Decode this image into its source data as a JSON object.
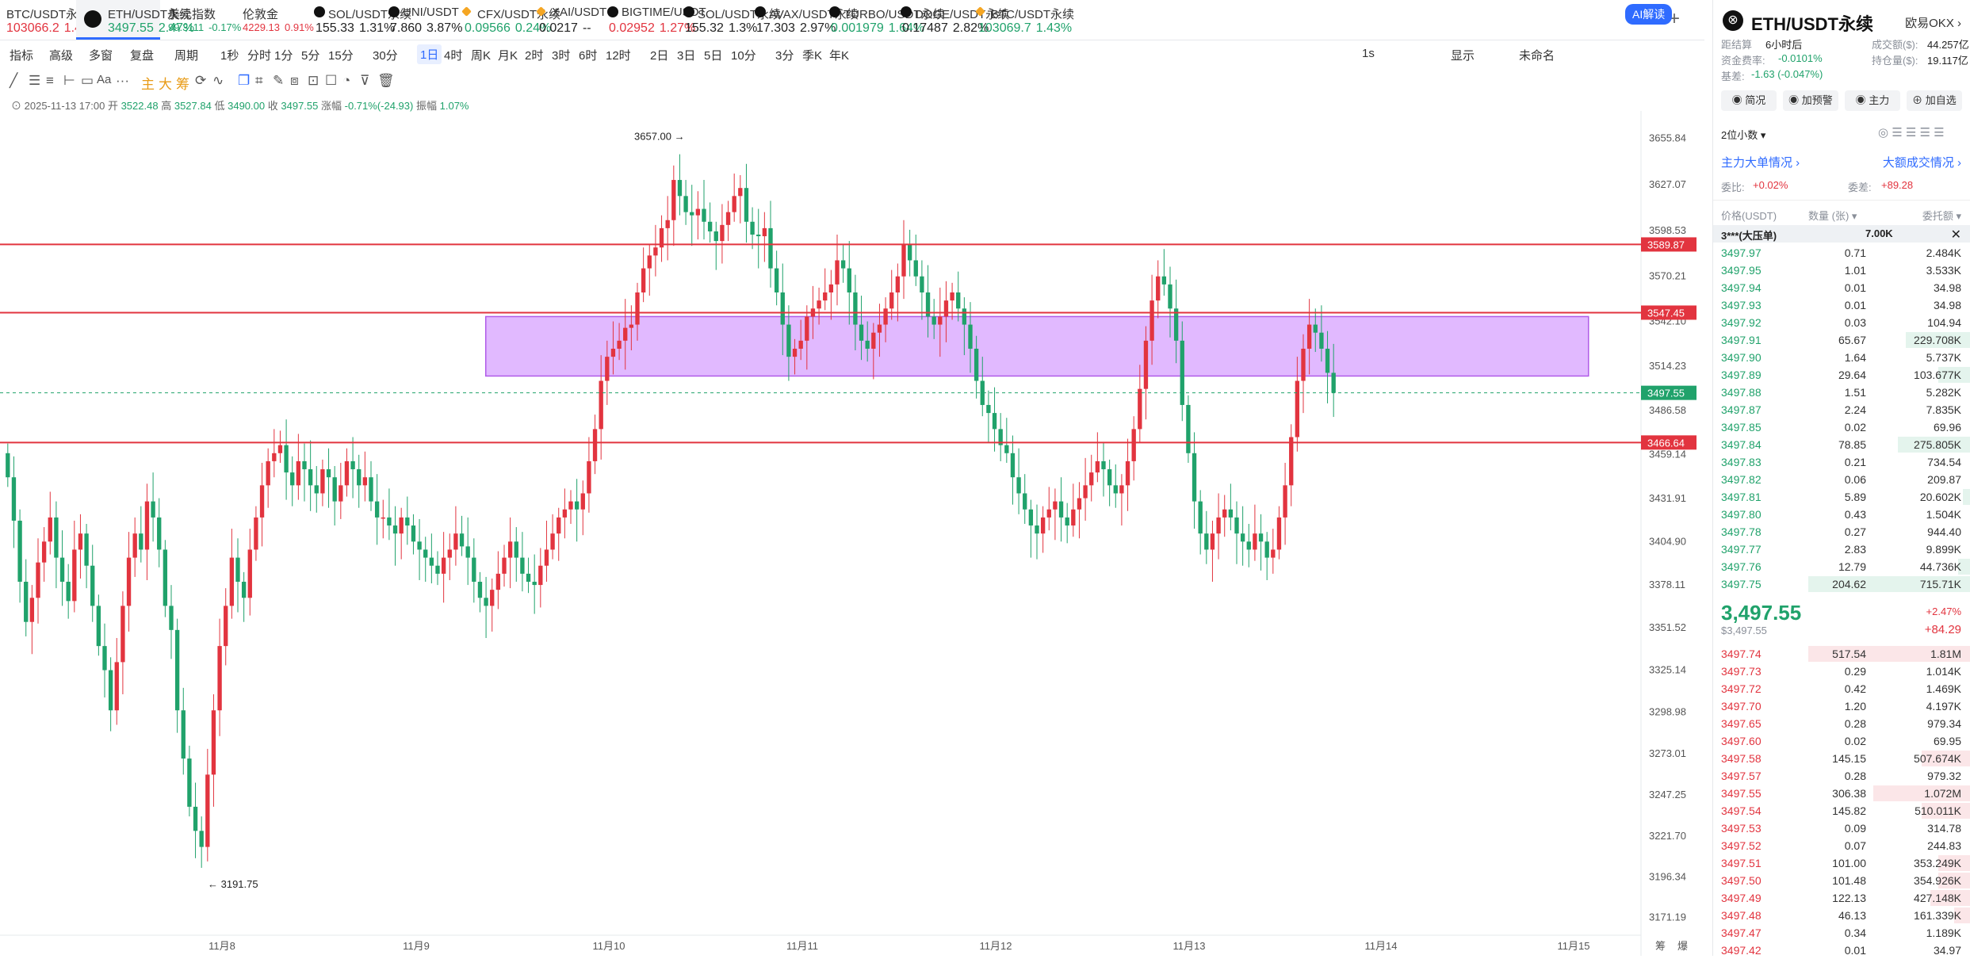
{
  "ticker_tabs": [
    {
      "name": "BTC/USDT永续",
      "price": "103066.2",
      "change": "1.44%",
      "dir": "up",
      "icon": "none"
    },
    {
      "name": "ETH/USDT永续",
      "price": "3497.55",
      "change": "2.47%",
      "dir": "down",
      "icon": "okx-icon",
      "active": true
    },
    {
      "name": "美元指数",
      "price": "99.3111",
      "change": "-0.17%",
      "dir": "down",
      "icon": "none"
    },
    {
      "name": "伦敦金",
      "price": "4229.13",
      "change": "0.91%",
      "dir": "up",
      "icon": "none"
    },
    {
      "name": "SOL/USDT永续",
      "price": "155.33",
      "change": "1.31%",
      "dir": "neutral",
      "icon": "okx-icon"
    },
    {
      "name": "UNI/USDT",
      "price": "7.860",
      "change": "3.87%",
      "dir": "neutral",
      "icon": "okx-icon"
    },
    {
      "name": "CFX/USDT永续",
      "price": "0.09566",
      "change": "0.24%",
      "dir": "down",
      "icon": "binance-icon"
    },
    {
      "name": "XAI/USDT",
      "price": "0.0217",
      "change": "--",
      "dir": "neutral",
      "icon": "binance-icon"
    },
    {
      "name": "BIGTIME/USDT",
      "price": "0.02952",
      "change": "1.27%",
      "dir": "up",
      "icon": "okx-icon"
    },
    {
      "name": "SOL/USDT永续",
      "price": "155.32",
      "change": "1.3%",
      "dir": "neutral",
      "icon": "okx-icon"
    },
    {
      "name": "AVAX/USDT永续",
      "price": "17.303",
      "change": "2.97%",
      "dir": "neutral",
      "icon": "okx-icon"
    },
    {
      "name": "TURBO/USDT永续",
      "price": "0.001979",
      "change": "1.64%",
      "dir": "down",
      "icon": "okx-icon"
    },
    {
      "name": "DOGE/USDT永续",
      "price": "0.17487",
      "change": "2.82%",
      "dir": "neutral",
      "icon": "okx-icon"
    },
    {
      "name": "BTC/USDT永续",
      "price": "103069.7",
      "change": "1.43%",
      "dir": "down",
      "icon": "binance-icon"
    }
  ],
  "toolbar": {
    "items": [
      "指标",
      "高级",
      "多窗",
      "复盘",
      "周期",
      "1秒",
      "分时",
      "1分",
      "5分",
      "15分",
      "30分",
      "1日",
      "4时",
      "周K",
      "月K",
      "2时",
      "3时",
      "6时",
      "12时",
      "2日",
      "3日",
      "5日",
      "10分",
      "3分",
      "季K",
      "年K"
    ],
    "selected": "1日",
    "right_items": [
      "1s",
      "显示",
      "未命名"
    ],
    "ai_label": "AI解读"
  },
  "draw_tools": {
    "labels": [
      "Aa",
      "主",
      "大",
      "筹"
    ]
  },
  "ohlc": {
    "date": "2025-11-13 17:00",
    "open_label": "开",
    "open": "3522.48",
    "high_label": "高",
    "high": "3527.84",
    "low_label": "低",
    "low": "3490.00",
    "close_label": "收",
    "close": "3497.55",
    "chg_label": "涨幅",
    "chg": "-0.71%(-24.93)",
    "amp_label": "振幅",
    "amp": "1.07%"
  },
  "chart_data": {
    "type": "candlestick",
    "x_labels": [
      "11月8",
      "11月9",
      "11月10",
      "11月11",
      "11月12",
      "11月13",
      "11月14",
      "11月15"
    ],
    "y_ticks": [
      3655.84,
      3627.07,
      3598.53,
      3570.21,
      3542.1,
      3514.23,
      3486.58,
      3459.14,
      3431.91,
      3404.9,
      3378.11,
      3351.52,
      3325.14,
      3298.98,
      3273.01,
      3247.25,
      3221.7,
      3196.34,
      3171.19
    ],
    "ylim": [
      3165,
      3668
    ],
    "h_lines": [
      {
        "label": "3589.87",
        "value": 3589.87,
        "color": "#e2343f"
      },
      {
        "label": "3547.45",
        "value": 3547.45,
        "color": "#e2343f"
      },
      {
        "label": "3466.64",
        "value": 3466.64,
        "color": "#e2343f"
      }
    ],
    "current_price": {
      "label": "3497.55",
      "value": 3497.55,
      "color": "#20a26b"
    },
    "zone": {
      "top": 3545,
      "bottom": 3508,
      "x_start": 0.296,
      "x_end": 0.968,
      "color": "#d9a7ff"
    },
    "max_label": "3657.00",
    "max_value": 3657.0,
    "min_label": "3191.75",
    "min_value": 3191.75,
    "corner_labels": [
      "筹",
      "爆"
    ],
    "close_series": [
      3445,
      3418,
      3380,
      3355,
      3370,
      3392,
      3405,
      3420,
      3395,
      3380,
      3368,
      3400,
      3410,
      3390,
      3365,
      3340,
      3325,
      3300,
      3330,
      3365,
      3395,
      3410,
      3400,
      3430,
      3420,
      3400,
      3365,
      3350,
      3300,
      3270,
      3240,
      3225,
      3215,
      3260,
      3300,
      3340,
      3365,
      3395,
      3380,
      3370,
      3400,
      3420,
      3440,
      3455,
      3460,
      3465,
      3448,
      3440,
      3455,
      3450,
      3440,
      3435,
      3450,
      3445,
      3430,
      3440,
      3455,
      3450,
      3440,
      3445,
      3430,
      3420,
      3420,
      3415,
      3410,
      3420,
      3415,
      3405,
      3400,
      3395,
      3390,
      3385,
      3395,
      3400,
      3410,
      3402,
      3395,
      3380,
      3370,
      3365,
      3375,
      3385,
      3395,
      3405,
      3395,
      3385,
      3380,
      3378,
      3390,
      3400,
      3410,
      3420,
      3425,
      3430,
      3425,
      3435,
      3455,
      3475,
      3505,
      3520,
      3525,
      3530,
      3538,
      3540,
      3560,
      3575,
      3583,
      3588,
      3600,
      3605,
      3630,
      3620,
      3610,
      3608,
      3612,
      3604,
      3598,
      3592,
      3602,
      3610,
      3620,
      3625,
      3604,
      3596,
      3595,
      3600,
      3575,
      3560,
      3540,
      3520,
      3525,
      3530,
      3545,
      3550,
      3555,
      3560,
      3565,
      3580,
      3575,
      3560,
      3540,
      3530,
      3525,
      3535,
      3540,
      3550,
      3560,
      3570,
      3590,
      3580,
      3570,
      3560,
      3545,
      3540,
      3545,
      3555,
      3560,
      3550,
      3540,
      3525,
      3505,
      3490,
      3485,
      3475,
      3465,
      3460,
      3445,
      3435,
      3425,
      3415,
      3410,
      3420,
      3425,
      3430,
      3420,
      3415,
      3425,
      3432,
      3440,
      3448,
      3455,
      3450,
      3440,
      3435,
      3440,
      3455,
      3475,
      3500,
      3530,
      3555,
      3570,
      3565,
      3550,
      3530,
      3490,
      3460,
      3430,
      3410,
      3400,
      3410,
      3420,
      3425,
      3420,
      3410,
      3405,
      3400,
      3410,
      3405,
      3395,
      3400,
      3420,
      3440,
      3470,
      3505,
      3525,
      3540,
      3535,
      3525,
      3510,
      3497.55
    ]
  },
  "panel": {
    "symbol": "ETH/USDT永续",
    "exchange": "欧易OKX",
    "funding_label": "距结算",
    "funding_val": "6小时后",
    "rate_label": "资金费率:",
    "rate_val": "-0.0101%",
    "basis_label": "基差:",
    "basis_val": "-1.63 (-0.047%)",
    "vol_label": "成交额($):",
    "vol_val": "44.257亿",
    "oi_label": "持仓量($):",
    "oi_val": "19.117亿",
    "buttons": [
      "简况",
      "加预警",
      "主力",
      "加自选"
    ],
    "decimals": "2位小数",
    "big_orders": "主力大单情况",
    "big_trades": "大额成交情况",
    "ratio_label": "委比:",
    "ratio_val": "+0.02%",
    "diff_label": "委差:",
    "diff_val": "+89.28",
    "col_price": "价格(USDT)",
    "col_qty": "数量 (张)",
    "col_total": "委托额",
    "wall_label": "3***(大压单)",
    "wall_val": "7.00K",
    "asks": [
      [
        "3497.97",
        "0.71",
        "2.484K",
        0
      ],
      [
        "3497.95",
        "1.01",
        "3.533K",
        0
      ],
      [
        "3497.94",
        "0.01",
        "34.98",
        0
      ],
      [
        "3497.93",
        "0.01",
        "34.98",
        0
      ],
      [
        "3497.92",
        "0.03",
        "104.94",
        0
      ],
      [
        "3497.91",
        "65.67",
        "229.708K",
        0.4
      ],
      [
        "3497.90",
        "1.64",
        "5.737K",
        0
      ],
      [
        "3497.89",
        "29.64",
        "103.677K",
        0.2
      ],
      [
        "3497.88",
        "1.51",
        "5.282K",
        0
      ],
      [
        "3497.87",
        "2.24",
        "7.835K",
        0
      ],
      [
        "3497.85",
        "0.02",
        "69.96",
        0
      ],
      [
        "3497.84",
        "78.85",
        "275.805K",
        0.45
      ],
      [
        "3497.83",
        "0.21",
        "734.54",
        0
      ],
      [
        "3497.82",
        "0.06",
        "209.87",
        0
      ],
      [
        "3497.81",
        "5.89",
        "20.602K",
        0.05
      ],
      [
        "3497.80",
        "0.43",
        "1.504K",
        0
      ],
      [
        "3497.78",
        "0.27",
        "944.40",
        0
      ],
      [
        "3497.77",
        "2.83",
        "9.899K",
        0
      ],
      [
        "3497.76",
        "12.79",
        "44.736K",
        0.08
      ],
      [
        "3497.75",
        "204.62",
        "715.71K",
        1.0
      ]
    ],
    "last_price": "3,497.55",
    "last_usd": "$3,497.55",
    "last_chg": "+2.47%",
    "last_diff": "+84.29",
    "bids": [
      [
        "3497.74",
        "517.54",
        "1.81M",
        1.0
      ],
      [
        "3497.73",
        "0.29",
        "1.014K",
        0
      ],
      [
        "3497.72",
        "0.42",
        "1.469K",
        0
      ],
      [
        "3497.70",
        "1.20",
        "4.197K",
        0
      ],
      [
        "3497.65",
        "0.28",
        "979.34",
        0
      ],
      [
        "3497.60",
        "0.02",
        "69.95",
        0
      ],
      [
        "3497.58",
        "145.15",
        "507.674K",
        0.3
      ],
      [
        "3497.57",
        "0.28",
        "979.32",
        0
      ],
      [
        "3497.55",
        "306.38",
        "1.072M",
        0.6
      ],
      [
        "3497.54",
        "145.82",
        "510.011K",
        0.3
      ],
      [
        "3497.53",
        "0.09",
        "314.78",
        0
      ],
      [
        "3497.52",
        "0.07",
        "244.83",
        0
      ],
      [
        "3497.51",
        "101.00",
        "353.249K",
        0.2
      ],
      [
        "3497.50",
        "101.48",
        "354.926K",
        0.2
      ],
      [
        "3497.49",
        "122.13",
        "427.148K",
        0.25
      ],
      [
        "3497.48",
        "46.13",
        "161.339K",
        0.1
      ],
      [
        "3497.47",
        "0.34",
        "1.189K",
        0
      ],
      [
        "3497.42",
        "0.01",
        "34.97",
        0
      ]
    ]
  }
}
